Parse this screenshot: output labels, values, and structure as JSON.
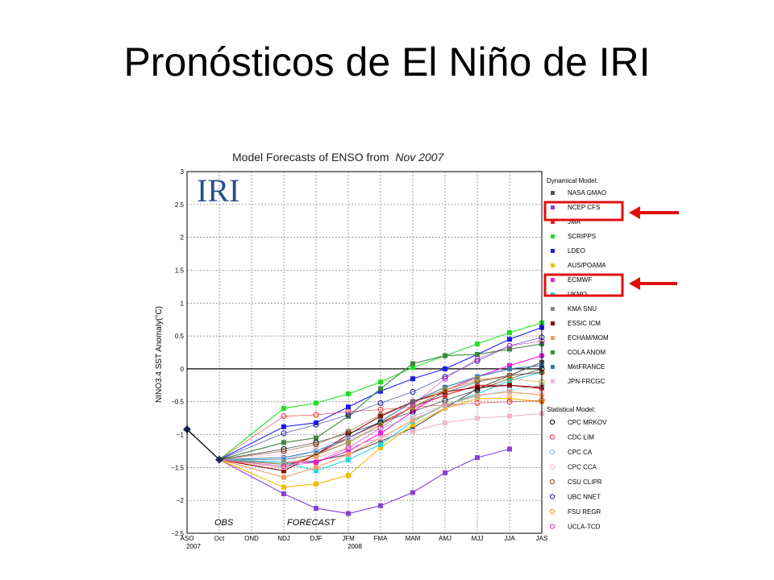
{
  "slide": {
    "title": "Pronósticos de El Niño de IRI"
  },
  "chart_data": {
    "type": "line",
    "title_prefix": "Model Forecasts of ENSO from",
    "title_date": "Nov 2007",
    "logo": "IRI",
    "ylabel": "NINO3.4 SST Anomaly(°C)",
    "ylim": [
      -2.5,
      3
    ],
    "yticks": [
      3,
      2.5,
      2,
      1.5,
      1,
      0.5,
      0,
      -0.5,
      -1,
      -1.5,
      -2,
      -2.5
    ],
    "ytick_labels": [
      "3",
      "2.5",
      "2",
      "1.5",
      "1",
      "0.5",
      "0",
      "−0.5",
      "−1",
      "−1.5",
      "−2",
      "−2.5"
    ],
    "categories": [
      "ASO",
      "Oct",
      "OND",
      "NDJ",
      "DJF",
      "JFM",
      "FMA",
      "MAM",
      "AMJ",
      "MJJ",
      "JJA",
      "JAS"
    ],
    "year_labels": [
      {
        "label": "2007",
        "at": 0
      },
      {
        "label": "2008",
        "at": 5
      }
    ],
    "obs_label": "OBS",
    "forecast_label": "FORECAST",
    "grid": true,
    "legend_position": "right",
    "dynamical_heading": "Dynamical Model:",
    "statistical_heading": "Statistical Model:",
    "observed": [
      -0.92,
      -1.38
    ],
    "dynamical_series": [
      {
        "name": "NASA GMAO",
        "color": "#555555",
        "values": [
          -1.45,
          -1.4,
          -1.3,
          -1.1,
          -0.9,
          -0.6,
          -0.3,
          -0.1,
          0.1
        ]
      },
      {
        "name": "NCEP CFS",
        "color": "#8a3fd6",
        "values": [
          -1.9,
          -2.12,
          -2.2,
          -2.08,
          -1.88,
          -1.58,
          -1.35,
          -1.22
        ]
      },
      {
        "name": "JMA",
        "color": "#e8262c",
        "values": [
          -1.5,
          -1.3,
          -1.05,
          -0.82,
          -0.58,
          -0.4,
          -0.25,
          -0.25,
          -0.3
        ]
      },
      {
        "name": "SCRIPPS",
        "color": "#22e022",
        "values": [
          -0.6,
          -0.52,
          -0.38,
          -0.2,
          0.02,
          0.2,
          0.38,
          0.55,
          0.7
        ]
      },
      {
        "name": "LDEO",
        "color": "#1a1aee",
        "values": [
          -0.88,
          -0.82,
          -0.58,
          -0.34,
          -0.15,
          0.0,
          0.22,
          0.45,
          0.63
        ]
      },
      {
        "name": "AUS/POAMA",
        "color": "#f5b800",
        "values": [
          -1.8,
          -1.75,
          -1.62,
          -1.2,
          -0.85,
          -0.6,
          -0.45,
          -0.45,
          -0.5
        ]
      },
      {
        "name": "ECMWF",
        "color": "#e820e0",
        "values": [
          -1.42,
          -1.42,
          -1.25,
          -0.98,
          -0.65,
          -0.33,
          -0.12,
          0.05,
          0.2
        ]
      },
      {
        "name": "UKMO",
        "color": "#22d6e0",
        "values": [
          -1.42,
          -1.55,
          -1.38,
          -1.15,
          -0.8,
          -0.55,
          -0.38,
          -0.18,
          -0.05
        ]
      },
      {
        "name": "KMA SNU",
        "color": "#888888",
        "values": [
          -1.38,
          -1.3,
          -1.12,
          -0.85,
          -0.58,
          -0.36,
          -0.2,
          -0.1,
          -0.05
        ]
      },
      {
        "name": "ESSIC ICM",
        "color": "#8b0000",
        "values": [
          -1.55,
          -1.3,
          -1.0,
          -0.72,
          -0.5,
          -0.35,
          -0.28,
          -0.25,
          -0.28
        ]
      },
      {
        "name": "ECHAM/MOM",
        "color": "#f59a60",
        "values": [
          -1.65,
          -1.5,
          -1.3,
          -1.05,
          -0.78,
          -0.55,
          -0.4,
          -0.35,
          -0.4
        ]
      },
      {
        "name": "COLA ANOM",
        "color": "#3a8a3a",
        "values": [
          -1.12,
          -1.05,
          -0.72,
          -0.3,
          0.08,
          0.2,
          0.22,
          0.3,
          0.38
        ]
      },
      {
        "name": "MetFRANCE",
        "color": "#3a7ab0",
        "values": [
          -1.35,
          -1.25,
          -1.05,
          -0.8,
          -0.5,
          -0.28,
          -0.12,
          0.0,
          0.05
        ]
      },
      {
        "name": "JPN-FRCGC",
        "color": "#f2b8c8",
        "values": [
          -1.5,
          -1.35,
          -1.2,
          -1.05,
          -0.95,
          -0.82,
          -0.75,
          -0.72,
          -0.68
        ]
      }
    ],
    "statistical_series": [
      {
        "name": "CPC MRKOV",
        "color": "#000000",
        "values": [
          -1.22,
          -1.12,
          -0.98,
          -0.82,
          -0.65,
          -0.48,
          -0.32,
          -0.15,
          0.0
        ]
      },
      {
        "name": "CDC LIM",
        "color": "#e8262c",
        "values": [
          -0.72,
          -0.7,
          -0.65,
          -0.62,
          -0.58,
          -0.55,
          -0.52,
          -0.5,
          -0.48
        ]
      },
      {
        "name": "CPC CA",
        "color": "#7ab8e8",
        "values": [
          -1.38,
          -1.25,
          -1.08,
          -0.9,
          -0.72,
          -0.55,
          -0.42,
          -0.32,
          -0.25
        ]
      },
      {
        "name": "CPC CCA",
        "color": "#f2b8c8",
        "values": [
          -1.3,
          -1.2,
          -1.05,
          -0.9,
          -0.75,
          -0.6,
          -0.5,
          -0.4,
          -0.35
        ]
      },
      {
        "name": "CSU CLIPR",
        "color": "#8b4513",
        "values": [
          -1.25,
          -1.15,
          -0.95,
          -0.7,
          -0.5,
          -0.32,
          -0.18,
          -0.1,
          -0.05
        ]
      },
      {
        "name": "UBC NNET",
        "color": "#1a1a9e",
        "values": [
          -0.98,
          -0.85,
          -0.7,
          -0.52,
          -0.35,
          -0.12,
          0.12,
          0.35,
          0.48
        ]
      },
      {
        "name": "FSU REGR",
        "color": "#c8a000",
        "values": [
          -1.45,
          -1.32,
          -1.12,
          -0.85,
          -0.58,
          -0.32,
          -0.15,
          -0.15,
          -0.2
        ]
      },
      {
        "name": "UCLA-TCD",
        "color": "#d020c8",
        "values": [
          -1.48,
          -1.42,
          -1.2,
          -0.9,
          -0.55,
          -0.15,
          0.15,
          0.35,
          0.42
        ]
      }
    ],
    "highlighted_series": [
      "NCEP CFS",
      "ECMWF"
    ]
  }
}
